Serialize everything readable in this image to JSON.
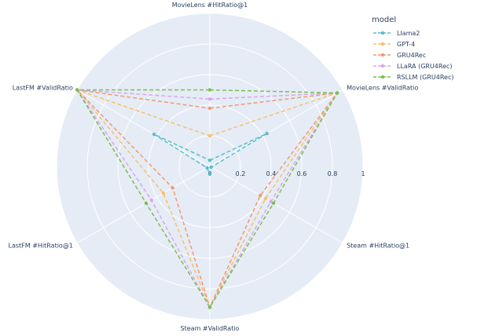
{
  "chart_data": {
    "type": "radar",
    "axes": [
      "MovieLens #HitRatio@1",
      "MovieLens  #ValidRatio",
      "Steam #HitRatio@1",
      "Steam #ValidRatio",
      "LastFM #HitRatio@1",
      "LastFM #ValidRatio"
    ],
    "radial_range": [
      0,
      1
    ],
    "radial_ticks": [
      "0",
      "0.2",
      "0.4",
      "0.6",
      "0.8",
      "1"
    ],
    "radial_tick_values": [
      0,
      0.2,
      0.4,
      0.6,
      0.8,
      1
    ],
    "legend_title": "model",
    "legend_position": "top-right",
    "series": [
      {
        "name": "Llama2",
        "color": "#5bbdc8",
        "values": [
          0.04,
          0.43,
          0.01,
          0.05,
          0.02,
          0.42
        ]
      },
      {
        "name": "GPT-4",
        "color": "#f5c26b",
        "values": [
          0.2,
          0.96,
          0.42,
          0.92,
          0.35,
          1.0
        ]
      },
      {
        "name": "GRU4Rec",
        "color": "#f29a6e",
        "values": [
          0.38,
          0.96,
          0.38,
          0.92,
          0.28,
          1.0
        ]
      },
      {
        "name": "LLaRA (GRU4Rec)",
        "color": "#d9a6ee",
        "values": [
          0.44,
          0.96,
          0.46,
          0.92,
          0.44,
          1.0
        ]
      },
      {
        "name": "RSLLM (GRU4Rec)",
        "color": "#7ebf4f",
        "values": [
          0.5,
          0.96,
          0.48,
          0.92,
          0.48,
          1.0
        ]
      }
    ]
  }
}
